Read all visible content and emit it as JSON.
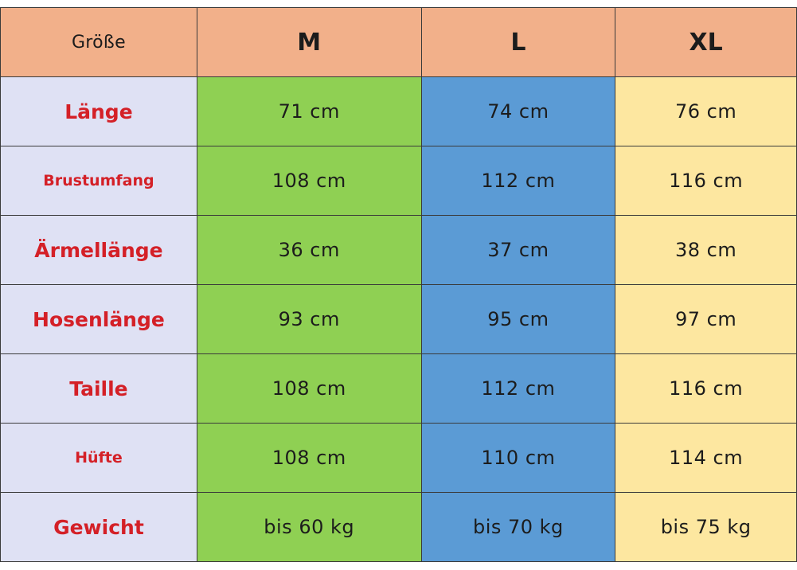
{
  "table": {
    "corner_label": "Größe",
    "sizes": [
      "M",
      "L",
      "XL"
    ],
    "rows": [
      {
        "label": "Länge",
        "values": [
          "71 cm",
          "74 cm",
          "76 cm"
        ]
      },
      {
        "label": "Brustumfang",
        "values": [
          "108 cm",
          "112 cm",
          "116 cm"
        ]
      },
      {
        "label": "Ärmellänge",
        "values": [
          "36 cm",
          "37 cm",
          "38 cm"
        ]
      },
      {
        "label": "Hosenlänge",
        "values": [
          "93 cm",
          "95 cm",
          "97 cm"
        ]
      },
      {
        "label": "Taille",
        "values": [
          "108 cm",
          "112 cm",
          "116 cm"
        ]
      },
      {
        "label": "Hüfte",
        "values": [
          "108 cm",
          "110 cm",
          "114 cm"
        ]
      },
      {
        "label": "Gewicht",
        "values": [
          "bis 60 kg",
          "bis 70 kg",
          "bis 75 kg"
        ]
      }
    ]
  },
  "colors": {
    "header_background": "#f2b08a",
    "label_column_background": "#dfe1f4",
    "label_text": "#d42027",
    "size_m_column": "#8fd053",
    "size_l_column": "#5b9bd5",
    "size_xl_column": "#fde7a0"
  }
}
